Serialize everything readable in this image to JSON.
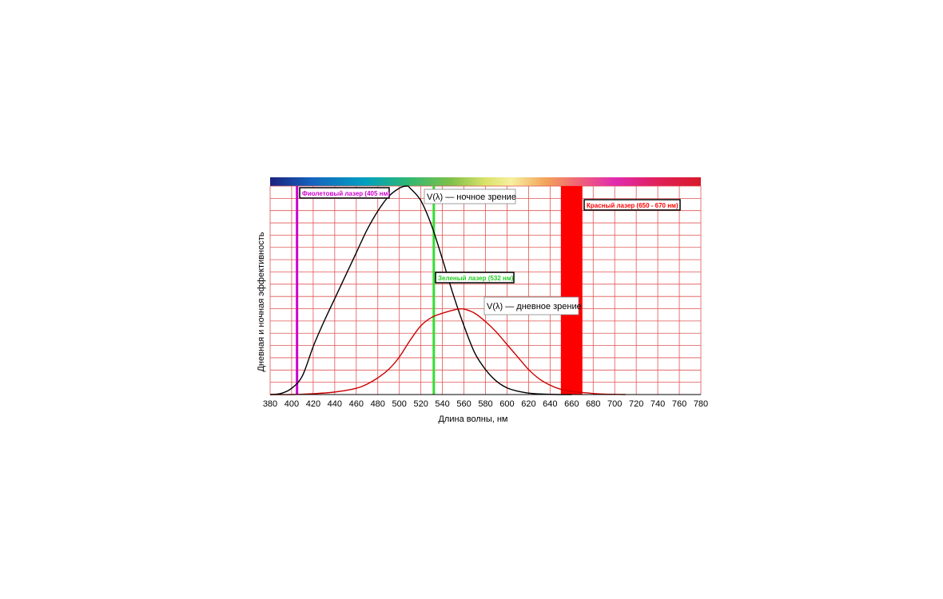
{
  "chart_data": {
    "type": "line",
    "title": "",
    "xlabel": "Длина волны, нм",
    "ylabel": "Дневная и ночная эффективность",
    "xlim": [
      380,
      780
    ],
    "ylim": [
      0,
      1
    ],
    "x_ticks": [
      380,
      400,
      420,
      440,
      460,
      480,
      500,
      520,
      540,
      560,
      580,
      600,
      620,
      640,
      660,
      680,
      700,
      720,
      740,
      760,
      780
    ],
    "grid": true,
    "grid_color": "#e05555",
    "spectrum_bar": true,
    "series": [
      {
        "name": "V(λ) — ночное зрение",
        "color": "#000000",
        "x": [
          380,
          390,
          400,
          410,
          420,
          430,
          440,
          450,
          460,
          470,
          480,
          490,
          500,
          507,
          510,
          520,
          530,
          540,
          550,
          560,
          570,
          580,
          590,
          600,
          610,
          620,
          630,
          640,
          650,
          660
        ],
        "y": [
          0.0,
          0.005,
          0.03,
          0.09,
          0.23,
          0.35,
          0.46,
          0.57,
          0.68,
          0.79,
          0.88,
          0.95,
          0.99,
          1.0,
          0.99,
          0.93,
          0.81,
          0.65,
          0.48,
          0.33,
          0.2,
          0.12,
          0.065,
          0.032,
          0.016,
          0.007,
          0.003,
          0.001,
          0.0,
          0.0
        ]
      },
      {
        "name": "V(λ) — дневное зрение",
        "color": "#cc0000",
        "x": [
          380,
          400,
          420,
          440,
          460,
          470,
          480,
          490,
          500,
          510,
          520,
          530,
          540,
          550,
          555,
          560,
          570,
          580,
          590,
          600,
          610,
          620,
          630,
          640,
          650,
          660,
          670,
          680,
          690,
          700,
          710
        ],
        "y": [
          0.0,
          0.0,
          0.004,
          0.012,
          0.03,
          0.05,
          0.08,
          0.12,
          0.18,
          0.26,
          0.33,
          0.37,
          0.39,
          0.405,
          0.41,
          0.41,
          0.39,
          0.35,
          0.3,
          0.24,
          0.18,
          0.12,
          0.075,
          0.045,
          0.025,
          0.015,
          0.01,
          0.005,
          0.002,
          0.001,
          0.0
        ]
      }
    ],
    "markers": [
      {
        "label": "Фиолетовый лазер (405 нм)",
        "x": 405,
        "color": "#cc00cc"
      },
      {
        "label": "Зеленый лазер (532 нм)",
        "x": 532,
        "color": "#33dd33"
      }
    ],
    "bands": [
      {
        "label": "Красный лазер (650 - 670 нм)",
        "x_start": 650,
        "x_end": 670,
        "color": "#ff0000"
      }
    ]
  }
}
